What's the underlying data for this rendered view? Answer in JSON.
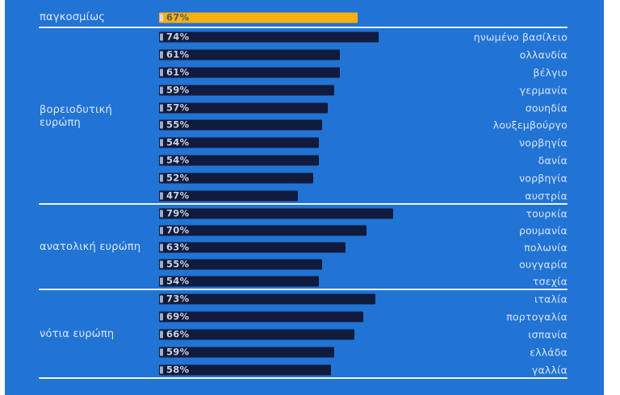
{
  "colors": {
    "background_blue": "#2173d4",
    "bar_navy": "#101b3e",
    "accent_orange": "#f8b013",
    "country_label_text": "#d9e5f6",
    "percent_text": "#ccd3dd",
    "percent_text_on_orange": "#595a5e",
    "divider_white": "#f0f5fc"
  },
  "chart_data": {
    "type": "bar",
    "orientation": "horizontal",
    "unit": "%",
    "xlim": [
      0,
      100
    ],
    "grid": "off",
    "legend": "none",
    "groups": [
      {
        "id": "worldwide",
        "label": "παγκοσμίως",
        "rows": [
          {
            "value": 67,
            "country": "",
            "highlight": true
          }
        ]
      },
      {
        "id": "northwestern-europe",
        "label": "βορειοδυτική ευρώπη",
        "rows": [
          {
            "value": 74,
            "country": "ηνωμένο βασίλειο"
          },
          {
            "value": 61,
            "country": "ολλανδία"
          },
          {
            "value": 61,
            "country": "βέλγιο"
          },
          {
            "value": 59,
            "country": "γερμανία"
          },
          {
            "value": 57,
            "country": "σουηδία"
          },
          {
            "value": 55,
            "country": "λουξεμβούργο"
          },
          {
            "value": 54,
            "country": "νορβηγία"
          },
          {
            "value": 54,
            "country": "δανία"
          },
          {
            "value": 52,
            "country": "νορβηγία"
          },
          {
            "value": 47,
            "country": "αυστρία"
          }
        ]
      },
      {
        "id": "eastern-europe",
        "label": "ανατολική ευρώπη",
        "rows": [
          {
            "value": 79,
            "country": "τουρκία"
          },
          {
            "value": 70,
            "country": "ρουμανία"
          },
          {
            "value": 63,
            "country": "πολωνία"
          },
          {
            "value": 55,
            "country": "ουγγαρία"
          },
          {
            "value": 54,
            "country": "τσεχία"
          }
        ]
      },
      {
        "id": "southern-europe",
        "label": "νότια ευρώπη",
        "rows": [
          {
            "value": 73,
            "country": "ιταλία"
          },
          {
            "value": 69,
            "country": "πορτογαλία"
          },
          {
            "value": 66,
            "country": "ισπανία"
          },
          {
            "value": 59,
            "country": "ελλάδα"
          },
          {
            "value": 58,
            "country": "γαλλία"
          }
        ]
      }
    ]
  }
}
